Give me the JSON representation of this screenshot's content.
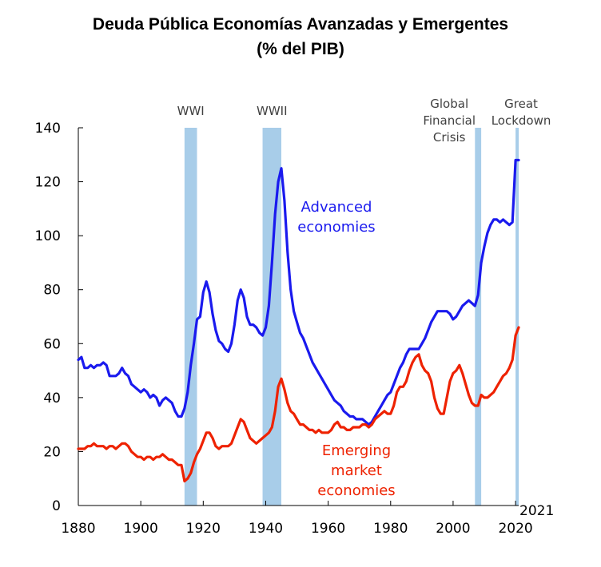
{
  "chart_data": {
    "type": "line",
    "title": "Deuda Pública Economías Avanzadas y Emergentes",
    "subtitle": "(% del PIB)",
    "xlabel": "",
    "ylabel": "",
    "xlim": [
      1880,
      2021
    ],
    "ylim": [
      0,
      140
    ],
    "x_ticks": [
      "1880",
      "1900",
      "1920",
      "1940",
      "1960",
      "1980",
      "2000",
      "2020"
    ],
    "y_ticks": [
      "0",
      "20",
      "40",
      "60",
      "80",
      "100",
      "120",
      "140"
    ],
    "end_year_label": "2021",
    "grid": false,
    "shaded_periods": [
      {
        "label": "WWI",
        "start": 1914,
        "end": 1918
      },
      {
        "label": "WWII",
        "start": 1939,
        "end": 1945
      },
      {
        "label": "Global Financial Crisis",
        "label_lines": [
          "Global",
          "Financial",
          "Crisis"
        ],
        "start": 2007,
        "end": 2009
      },
      {
        "label": "Great Lockdown",
        "label_lines": [
          "Great",
          "Lockdown"
        ],
        "start": 2020,
        "end": 2021
      }
    ],
    "series": [
      {
        "name": "Advanced economies",
        "label_lines": [
          "Advanced",
          "economies"
        ],
        "color": "#1a1aee",
        "points": [
          [
            1880,
            54
          ],
          [
            1881,
            55
          ],
          [
            1882,
            51
          ],
          [
            1883,
            51
          ],
          [
            1884,
            52
          ],
          [
            1885,
            51
          ],
          [
            1886,
            52
          ],
          [
            1887,
            52
          ],
          [
            1888,
            53
          ],
          [
            1889,
            52
          ],
          [
            1890,
            48
          ],
          [
            1891,
            48
          ],
          [
            1892,
            48
          ],
          [
            1893,
            49
          ],
          [
            1894,
            51
          ],
          [
            1895,
            49
          ],
          [
            1896,
            48
          ],
          [
            1897,
            45
          ],
          [
            1898,
            44
          ],
          [
            1899,
            43
          ],
          [
            1900,
            42
          ],
          [
            1901,
            43
          ],
          [
            1902,
            42
          ],
          [
            1903,
            40
          ],
          [
            1904,
            41
          ],
          [
            1905,
            40
          ],
          [
            1906,
            37
          ],
          [
            1907,
            39
          ],
          [
            1908,
            40
          ],
          [
            1909,
            39
          ],
          [
            1910,
            38
          ],
          [
            1911,
            35
          ],
          [
            1912,
            33
          ],
          [
            1913,
            33
          ],
          [
            1914,
            36
          ],
          [
            1915,
            42
          ],
          [
            1916,
            52
          ],
          [
            1917,
            60
          ],
          [
            1918,
            69
          ],
          [
            1919,
            70
          ],
          [
            1920,
            79
          ],
          [
            1921,
            83
          ],
          [
            1922,
            79
          ],
          [
            1923,
            71
          ],
          [
            1924,
            65
          ],
          [
            1925,
            61
          ],
          [
            1926,
            60
          ],
          [
            1927,
            58
          ],
          [
            1928,
            57
          ],
          [
            1929,
            60
          ],
          [
            1930,
            67
          ],
          [
            1931,
            76
          ],
          [
            1932,
            80
          ],
          [
            1933,
            77
          ],
          [
            1934,
            70
          ],
          [
            1935,
            67
          ],
          [
            1936,
            67
          ],
          [
            1937,
            66
          ],
          [
            1938,
            64
          ],
          [
            1939,
            63
          ],
          [
            1940,
            66
          ],
          [
            1941,
            74
          ],
          [
            1942,
            90
          ],
          [
            1943,
            108
          ],
          [
            1944,
            120
          ],
          [
            1945,
            125
          ],
          [
            1946,
            113
          ],
          [
            1947,
            94
          ],
          [
            1948,
            80
          ],
          [
            1949,
            72
          ],
          [
            1950,
            68
          ],
          [
            1951,
            64
          ],
          [
            1952,
            62
          ],
          [
            1953,
            59
          ],
          [
            1954,
            56
          ],
          [
            1955,
            53
          ],
          [
            1956,
            51
          ],
          [
            1957,
            49
          ],
          [
            1958,
            47
          ],
          [
            1959,
            45
          ],
          [
            1960,
            43
          ],
          [
            1961,
            41
          ],
          [
            1962,
            39
          ],
          [
            1963,
            38
          ],
          [
            1964,
            37
          ],
          [
            1965,
            35
          ],
          [
            1966,
            34
          ],
          [
            1967,
            33
          ],
          [
            1968,
            33
          ],
          [
            1969,
            32
          ],
          [
            1970,
            32
          ],
          [
            1971,
            32
          ],
          [
            1972,
            31
          ],
          [
            1973,
            30
          ],
          [
            1974,
            31
          ],
          [
            1975,
            33
          ],
          [
            1976,
            35
          ],
          [
            1977,
            37
          ],
          [
            1978,
            39
          ],
          [
            1979,
            41
          ],
          [
            1980,
            42
          ],
          [
            1981,
            45
          ],
          [
            1982,
            48
          ],
          [
            1983,
            51
          ],
          [
            1984,
            53
          ],
          [
            1985,
            56
          ],
          [
            1986,
            58
          ],
          [
            1987,
            58
          ],
          [
            1988,
            58
          ],
          [
            1989,
            58
          ],
          [
            1990,
            60
          ],
          [
            1991,
            62
          ],
          [
            1992,
            65
          ],
          [
            1993,
            68
          ],
          [
            1994,
            70
          ],
          [
            1995,
            72
          ],
          [
            1996,
            72
          ],
          [
            1997,
            72
          ],
          [
            1998,
            72
          ],
          [
            1999,
            71
          ],
          [
            2000,
            69
          ],
          [
            2001,
            70
          ],
          [
            2002,
            72
          ],
          [
            2003,
            74
          ],
          [
            2004,
            75
          ],
          [
            2005,
            76
          ],
          [
            2006,
            75
          ],
          [
            2007,
            74
          ],
          [
            2008,
            78
          ],
          [
            2009,
            90
          ],
          [
            2010,
            96
          ],
          [
            2011,
            101
          ],
          [
            2012,
            104
          ],
          [
            2013,
            106
          ],
          [
            2014,
            106
          ],
          [
            2015,
            105
          ],
          [
            2016,
            106
          ],
          [
            2017,
            105
          ],
          [
            2018,
            104
          ],
          [
            2019,
            105
          ],
          [
            2020,
            128
          ],
          [
            2021,
            128
          ]
        ]
      },
      {
        "name": "Emerging market economies",
        "label_lines": [
          "Emerging",
          "market",
          "economies"
        ],
        "color": "#ee2200",
        "points": [
          [
            1880,
            21
          ],
          [
            1881,
            21
          ],
          [
            1882,
            21
          ],
          [
            1883,
            22
          ],
          [
            1884,
            22
          ],
          [
            1885,
            23
          ],
          [
            1886,
            22
          ],
          [
            1887,
            22
          ],
          [
            1888,
            22
          ],
          [
            1889,
            21
          ],
          [
            1890,
            22
          ],
          [
            1891,
            22
          ],
          [
            1892,
            21
          ],
          [
            1893,
            22
          ],
          [
            1894,
            23
          ],
          [
            1895,
            23
          ],
          [
            1896,
            22
          ],
          [
            1897,
            20
          ],
          [
            1898,
            19
          ],
          [
            1899,
            18
          ],
          [
            1900,
            18
          ],
          [
            1901,
            17
          ],
          [
            1902,
            18
          ],
          [
            1903,
            18
          ],
          [
            1904,
            17
          ],
          [
            1905,
            18
          ],
          [
            1906,
            18
          ],
          [
            1907,
            19
          ],
          [
            1908,
            18
          ],
          [
            1909,
            17
          ],
          [
            1910,
            17
          ],
          [
            1911,
            16
          ],
          [
            1912,
            15
          ],
          [
            1913,
            15
          ],
          [
            1914,
            9
          ],
          [
            1915,
            10
          ],
          [
            1916,
            12
          ],
          [
            1917,
            16
          ],
          [
            1918,
            19
          ],
          [
            1919,
            21
          ],
          [
            1920,
            24
          ],
          [
            1921,
            27
          ],
          [
            1922,
            27
          ],
          [
            1923,
            25
          ],
          [
            1924,
            22
          ],
          [
            1925,
            21
          ],
          [
            1926,
            22
          ],
          [
            1927,
            22
          ],
          [
            1928,
            22
          ],
          [
            1929,
            23
          ],
          [
            1930,
            26
          ],
          [
            1931,
            29
          ],
          [
            1932,
            32
          ],
          [
            1933,
            31
          ],
          [
            1934,
            28
          ],
          [
            1935,
            25
          ],
          [
            1936,
            24
          ],
          [
            1937,
            23
          ],
          [
            1938,
            24
          ],
          [
            1939,
            25
          ],
          [
            1940,
            26
          ],
          [
            1941,
            27
          ],
          [
            1942,
            29
          ],
          [
            1943,
            35
          ],
          [
            1944,
            44
          ],
          [
            1945,
            47
          ],
          [
            1946,
            43
          ],
          [
            1947,
            38
          ],
          [
            1948,
            35
          ],
          [
            1949,
            34
          ],
          [
            1950,
            32
          ],
          [
            1951,
            30
          ],
          [
            1952,
            30
          ],
          [
            1953,
            29
          ],
          [
            1954,
            28
          ],
          [
            1955,
            28
          ],
          [
            1956,
            27
          ],
          [
            1957,
            28
          ],
          [
            1958,
            27
          ],
          [
            1959,
            27
          ],
          [
            1960,
            27
          ],
          [
            1961,
            28
          ],
          [
            1962,
            30
          ],
          [
            1963,
            31
          ],
          [
            1964,
            29
          ],
          [
            1965,
            29
          ],
          [
            1966,
            28
          ],
          [
            1967,
            28
          ],
          [
            1968,
            29
          ],
          [
            1969,
            29
          ],
          [
            1970,
            29
          ],
          [
            1971,
            30
          ],
          [
            1972,
            30
          ],
          [
            1973,
            29
          ],
          [
            1974,
            30
          ],
          [
            1975,
            32
          ],
          [
            1976,
            33
          ],
          [
            1977,
            34
          ],
          [
            1978,
            35
          ],
          [
            1979,
            34
          ],
          [
            1980,
            34
          ],
          [
            1981,
            37
          ],
          [
            1982,
            42
          ],
          [
            1983,
            44
          ],
          [
            1984,
            44
          ],
          [
            1985,
            46
          ],
          [
            1986,
            50
          ],
          [
            1987,
            53
          ],
          [
            1988,
            55
          ],
          [
            1989,
            56
          ],
          [
            1990,
            52
          ],
          [
            1991,
            50
          ],
          [
            1992,
            49
          ],
          [
            1993,
            46
          ],
          [
            1994,
            40
          ],
          [
            1995,
            36
          ],
          [
            1996,
            34
          ],
          [
            1997,
            34
          ],
          [
            1998,
            40
          ],
          [
            1999,
            46
          ],
          [
            2000,
            49
          ],
          [
            2001,
            50
          ],
          [
            2002,
            52
          ],
          [
            2003,
            49
          ],
          [
            2004,
            45
          ],
          [
            2005,
            41
          ],
          [
            2006,
            38
          ],
          [
            2007,
            37
          ],
          [
            2008,
            37
          ],
          [
            2009,
            41
          ],
          [
            2010,
            40
          ],
          [
            2011,
            40
          ],
          [
            2012,
            41
          ],
          [
            2013,
            42
          ],
          [
            2014,
            44
          ],
          [
            2015,
            46
          ],
          [
            2016,
            48
          ],
          [
            2017,
            49
          ],
          [
            2018,
            51
          ],
          [
            2019,
            54
          ],
          [
            2020,
            63
          ],
          [
            2021,
            66
          ]
        ]
      }
    ]
  }
}
